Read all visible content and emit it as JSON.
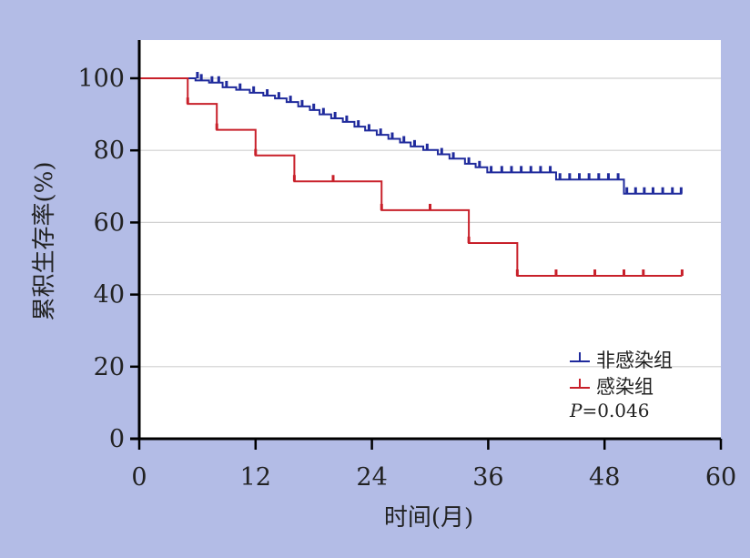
{
  "chart_data": {
    "type": "line",
    "chart_subtype": "kaplan-meier step curve",
    "title": "",
    "xlabel": "时间(月)",
    "ylabel": "累积生存率(%)",
    "xlim": [
      0,
      60
    ],
    "ylim": [
      0,
      100
    ],
    "xticks": [
      0,
      12,
      24,
      36,
      48,
      60
    ],
    "yticks": [
      0,
      20,
      40,
      60,
      80,
      100
    ],
    "grid": "horizontal",
    "legend_position": "bottom-right",
    "annotation": {
      "p_label": "P",
      "p_value": "=0.046"
    },
    "series": [
      {
        "name": "非感染组",
        "color": "#1f2a9c",
        "steps": [
          [
            0,
            100
          ],
          [
            5.8,
            99.4
          ],
          [
            7.2,
            98.8
          ],
          [
            8.6,
            97.5
          ],
          [
            10.0,
            96.8
          ],
          [
            11.4,
            96.0
          ],
          [
            12.8,
            95.2
          ],
          [
            14.0,
            94.4
          ],
          [
            15.2,
            93.4
          ],
          [
            16.4,
            92.2
          ],
          [
            17.6,
            91.2
          ],
          [
            18.6,
            90.0
          ],
          [
            19.8,
            88.9
          ],
          [
            21.0,
            87.9
          ],
          [
            22.2,
            86.6
          ],
          [
            23.3,
            85.5
          ],
          [
            24.5,
            84.3
          ],
          [
            25.7,
            83.2
          ],
          [
            26.9,
            82.2
          ],
          [
            28.0,
            81.1
          ],
          [
            29.3,
            80.1
          ],
          [
            30.8,
            78.9
          ],
          [
            32.0,
            77.7
          ],
          [
            33.6,
            76.3
          ],
          [
            34.7,
            75.3
          ],
          [
            35.9,
            73.9
          ],
          [
            43.0,
            71.9
          ],
          [
            50.0,
            68.0
          ],
          [
            56.0,
            68.0
          ]
        ],
        "censored": [
          [
            6.0,
            100
          ],
          [
            6.4,
            99.4
          ],
          [
            7.5,
            98.8
          ],
          [
            8.2,
            98.8
          ],
          [
            9.0,
            97.5
          ],
          [
            10.4,
            96.8
          ],
          [
            11.8,
            96.0
          ],
          [
            13.2,
            95.2
          ],
          [
            14.4,
            94.4
          ],
          [
            15.6,
            93.4
          ],
          [
            16.8,
            92.2
          ],
          [
            18.0,
            91.2
          ],
          [
            19.0,
            90.0
          ],
          [
            20.2,
            88.9
          ],
          [
            21.4,
            87.9
          ],
          [
            22.6,
            86.6
          ],
          [
            23.7,
            85.5
          ],
          [
            24.9,
            84.3
          ],
          [
            26.1,
            83.2
          ],
          [
            27.3,
            82.2
          ],
          [
            28.4,
            81.1
          ],
          [
            29.7,
            80.1
          ],
          [
            31.2,
            78.9
          ],
          [
            32.4,
            77.7
          ],
          [
            34.0,
            76.3
          ],
          [
            35.1,
            75.3
          ],
          [
            36.3,
            73.9
          ],
          [
            37.4,
            73.9
          ],
          [
            38.4,
            73.9
          ],
          [
            39.4,
            73.9
          ],
          [
            40.4,
            73.9
          ],
          [
            41.4,
            73.9
          ],
          [
            42.4,
            73.9
          ],
          [
            43.4,
            71.9
          ],
          [
            44.4,
            71.9
          ],
          [
            45.4,
            71.9
          ],
          [
            46.4,
            71.9
          ],
          [
            47.4,
            71.9
          ],
          [
            48.4,
            71.9
          ],
          [
            49.4,
            71.9
          ],
          [
            50.3,
            68.0
          ],
          [
            51.2,
            68.0
          ],
          [
            52.1,
            68.0
          ],
          [
            53.0,
            68.0
          ],
          [
            54.0,
            68.0
          ],
          [
            55.0,
            68.0
          ],
          [
            55.9,
            68.0
          ]
        ]
      },
      {
        "name": "感染组",
        "color": "#c8202a",
        "steps": [
          [
            0,
            100
          ],
          [
            5.0,
            92.9
          ],
          [
            8.0,
            85.7
          ],
          [
            12.0,
            78.6
          ],
          [
            16.0,
            71.4
          ],
          [
            25.0,
            63.4
          ],
          [
            34.0,
            54.3
          ],
          [
            39.0,
            45.2
          ],
          [
            56.0,
            45.2
          ]
        ],
        "censored": [
          [
            5.0,
            92.9
          ],
          [
            8.0,
            85.7
          ],
          [
            12.0,
            78.6
          ],
          [
            16.0,
            71.4
          ],
          [
            20.0,
            71.4
          ],
          [
            25.0,
            63.4
          ],
          [
            30.0,
            63.4
          ],
          [
            34.0,
            54.3
          ],
          [
            39.0,
            45.2
          ],
          [
            43.0,
            45.2
          ],
          [
            47.0,
            45.2
          ],
          [
            50.0,
            45.2
          ],
          [
            52.0,
            45.2
          ],
          [
            56.0,
            45.2
          ]
        ]
      }
    ]
  }
}
